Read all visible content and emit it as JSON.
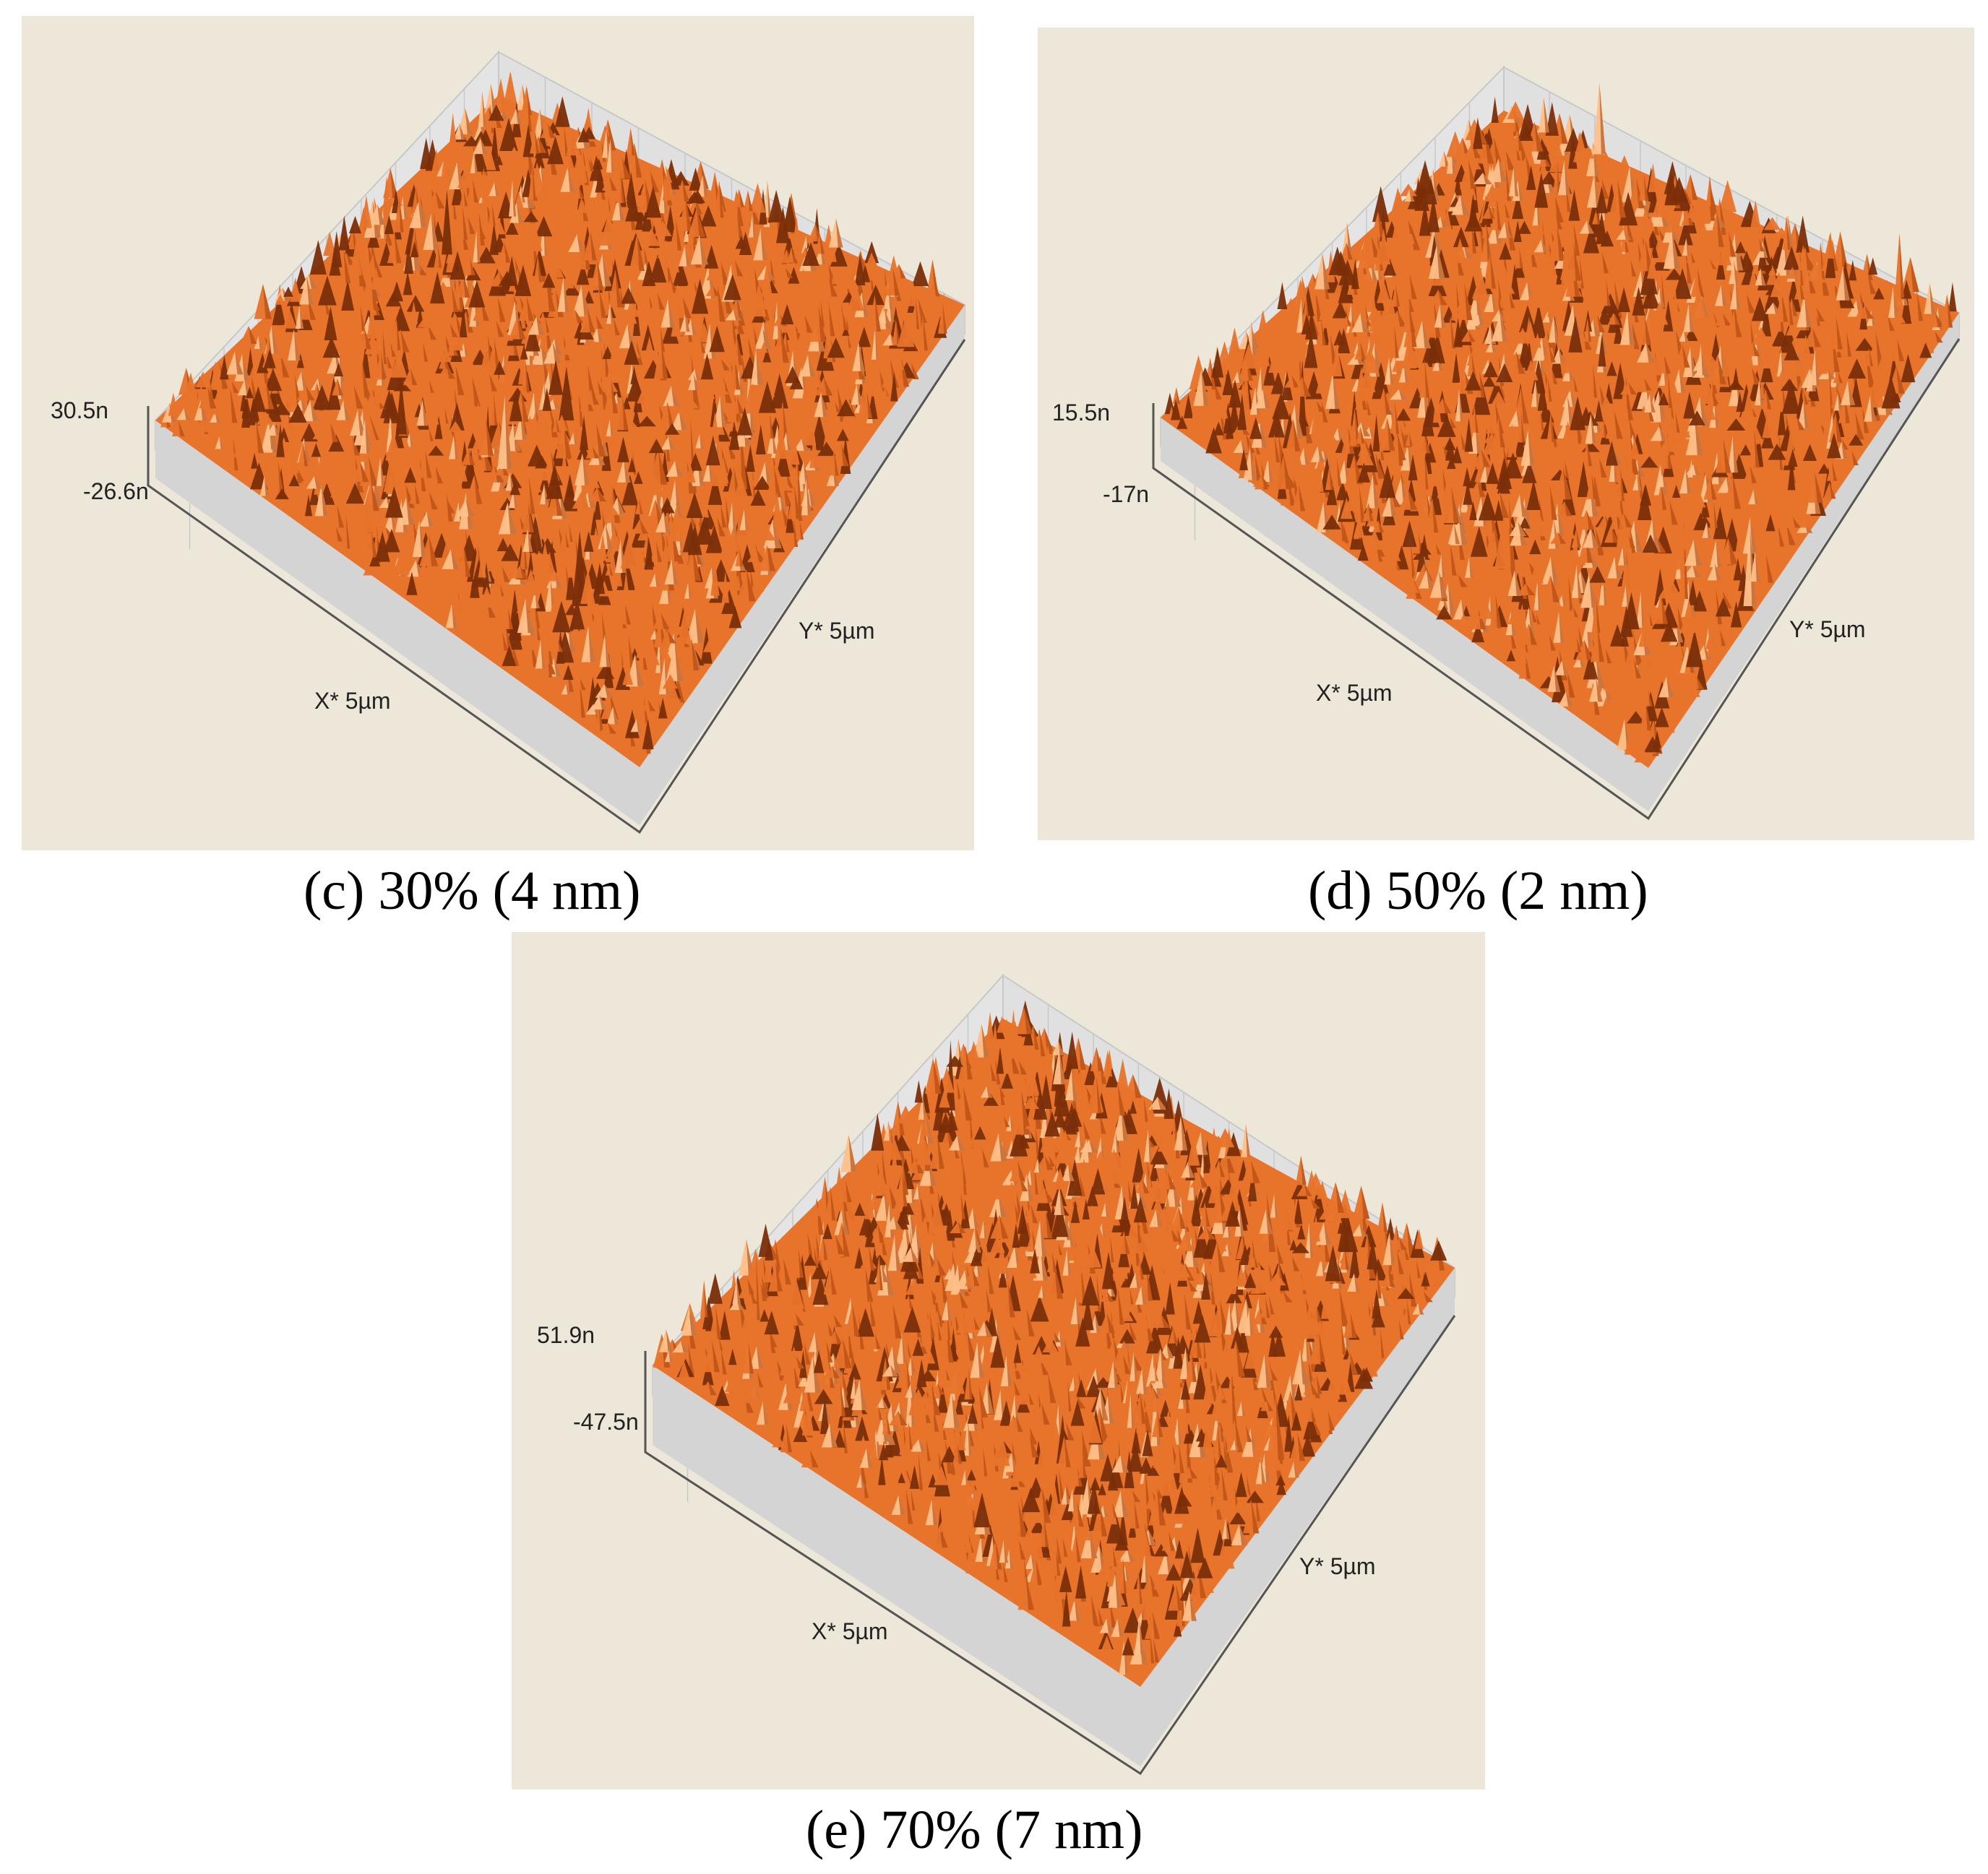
{
  "panels": [
    {
      "id": "c",
      "caption": "(c) 30% (4 nm)",
      "z_max_label": "30.5n",
      "z_min_label": "-26.6n",
      "x_axis_label": "X* 5µm",
      "y_axis_label": "Y* 5µm",
      "scan_size": "5µm"
    },
    {
      "id": "d",
      "caption": "(d) 50% (2 nm)",
      "z_max_label": "15.5n",
      "z_min_label": "-17n",
      "x_axis_label": "X* 5µm",
      "y_axis_label": "Y* 5µm",
      "scan_size": "5µm"
    },
    {
      "id": "e",
      "caption": "(e) 70% (7 nm)",
      "z_max_label": "51.9n",
      "z_min_label": "-47.5n",
      "x_axis_label": "X* 5µm",
      "y_axis_label": "Y* 5µm",
      "scan_size": "5µm"
    }
  ],
  "colors": {
    "background": "#ece7d8",
    "surface_base": "#e8732a",
    "surface_highlight": "#ffc08a",
    "surface_shadow": "#7a2e08",
    "grid": "#c8c8c8"
  }
}
